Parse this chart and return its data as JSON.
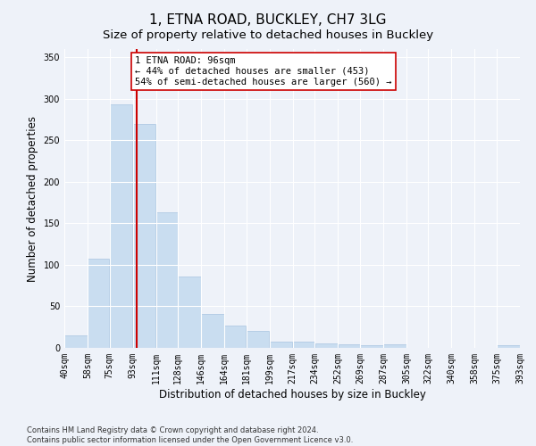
{
  "title": "1, ETNA ROAD, BUCKLEY, CH7 3LG",
  "subtitle": "Size of property relative to detached houses in Buckley",
  "xlabel": "Distribution of detached houses by size in Buckley",
  "ylabel": "Number of detached properties",
  "footer_line1": "Contains HM Land Registry data © Crown copyright and database right 2024.",
  "footer_line2": "Contains public sector information licensed under the Open Government Licence v3.0.",
  "bar_edges": [
    40,
    58,
    75,
    93,
    111,
    128,
    146,
    164,
    181,
    199,
    217,
    234,
    252,
    269,
    287,
    305,
    322,
    340,
    358,
    375,
    393
  ],
  "bar_values": [
    15,
    108,
    293,
    270,
    163,
    86,
    41,
    27,
    20,
    8,
    7,
    5,
    4,
    3,
    4,
    0,
    0,
    0,
    0,
    3
  ],
  "bar_color": "#c9ddf0",
  "bar_edge_color": "#a8c4e0",
  "property_size": 96,
  "red_line_color": "#cc0000",
  "annotation_line1": "1 ETNA ROAD: 96sqm",
  "annotation_line2": "← 44% of detached houses are smaller (453)",
  "annotation_line3": "54% of semi-detached houses are larger (560) →",
  "annotation_box_color": "#ffffff",
  "annotation_box_edge": "#cc0000",
  "ylim": [
    0,
    360
  ],
  "yticks": [
    0,
    50,
    100,
    150,
    200,
    250,
    300,
    350
  ],
  "background_color": "#eef2f9",
  "grid_color": "#ffffff",
  "title_fontsize": 11,
  "subtitle_fontsize": 9.5,
  "axis_label_fontsize": 8.5,
  "tick_fontsize": 7,
  "annotation_fontsize": 7.5,
  "footer_fontsize": 6
}
